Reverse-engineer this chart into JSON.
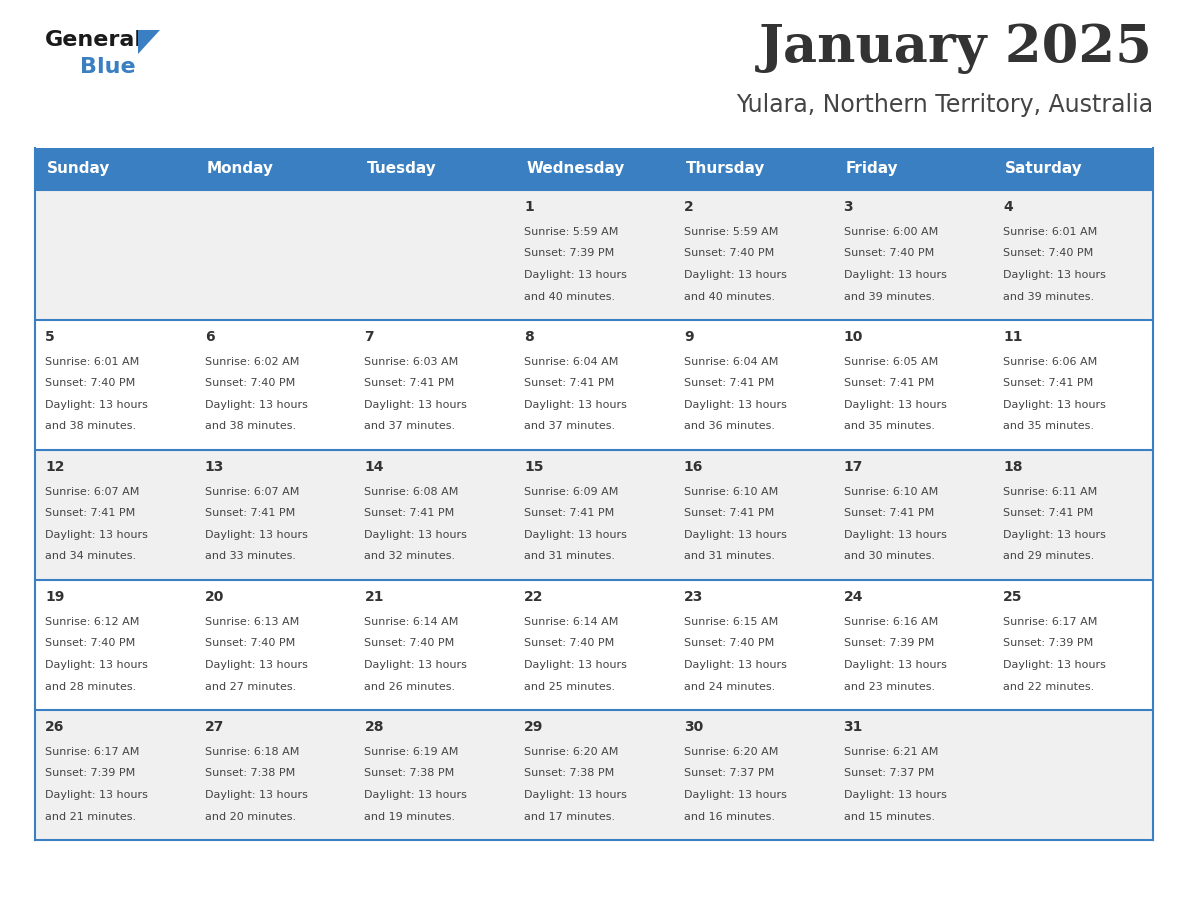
{
  "title": "January 2025",
  "subtitle": "Yulara, Northern Territory, Australia",
  "header_color": "#3a7fc1",
  "header_text_color": "#ffffff",
  "day_names": [
    "Sunday",
    "Monday",
    "Tuesday",
    "Wednesday",
    "Thursday",
    "Friday",
    "Saturday"
  ],
  "row_bg_even": "#f0f0f0",
  "row_bg_odd": "#ffffff",
  "border_color": "#3a7fc1",
  "text_color": "#444444",
  "day_number_color": "#333333",
  "logo_general_color": "#1a1a1a",
  "logo_blue_color": "#3a7fc1",
  "title_fontsize": 38,
  "subtitle_fontsize": 17,
  "header_fontsize": 11,
  "day_num_fontsize": 10,
  "cell_fontsize": 8,
  "days": [
    {
      "date": 1,
      "col": 3,
      "row": 0,
      "sunrise": "5:59 AM",
      "sunset": "7:39 PM",
      "daylight": "13 hours and 40 minutes"
    },
    {
      "date": 2,
      "col": 4,
      "row": 0,
      "sunrise": "5:59 AM",
      "sunset": "7:40 PM",
      "daylight": "13 hours and 40 minutes"
    },
    {
      "date": 3,
      "col": 5,
      "row": 0,
      "sunrise": "6:00 AM",
      "sunset": "7:40 PM",
      "daylight": "13 hours and 39 minutes"
    },
    {
      "date": 4,
      "col": 6,
      "row": 0,
      "sunrise": "6:01 AM",
      "sunset": "7:40 PM",
      "daylight": "13 hours and 39 minutes"
    },
    {
      "date": 5,
      "col": 0,
      "row": 1,
      "sunrise": "6:01 AM",
      "sunset": "7:40 PM",
      "daylight": "13 hours and 38 minutes"
    },
    {
      "date": 6,
      "col": 1,
      "row": 1,
      "sunrise": "6:02 AM",
      "sunset": "7:40 PM",
      "daylight": "13 hours and 38 minutes"
    },
    {
      "date": 7,
      "col": 2,
      "row": 1,
      "sunrise": "6:03 AM",
      "sunset": "7:41 PM",
      "daylight": "13 hours and 37 minutes"
    },
    {
      "date": 8,
      "col": 3,
      "row": 1,
      "sunrise": "6:04 AM",
      "sunset": "7:41 PM",
      "daylight": "13 hours and 37 minutes"
    },
    {
      "date": 9,
      "col": 4,
      "row": 1,
      "sunrise": "6:04 AM",
      "sunset": "7:41 PM",
      "daylight": "13 hours and 36 minutes"
    },
    {
      "date": 10,
      "col": 5,
      "row": 1,
      "sunrise": "6:05 AM",
      "sunset": "7:41 PM",
      "daylight": "13 hours and 35 minutes"
    },
    {
      "date": 11,
      "col": 6,
      "row": 1,
      "sunrise": "6:06 AM",
      "sunset": "7:41 PM",
      "daylight": "13 hours and 35 minutes"
    },
    {
      "date": 12,
      "col": 0,
      "row": 2,
      "sunrise": "6:07 AM",
      "sunset": "7:41 PM",
      "daylight": "13 hours and 34 minutes"
    },
    {
      "date": 13,
      "col": 1,
      "row": 2,
      "sunrise": "6:07 AM",
      "sunset": "7:41 PM",
      "daylight": "13 hours and 33 minutes"
    },
    {
      "date": 14,
      "col": 2,
      "row": 2,
      "sunrise": "6:08 AM",
      "sunset": "7:41 PM",
      "daylight": "13 hours and 32 minutes"
    },
    {
      "date": 15,
      "col": 3,
      "row": 2,
      "sunrise": "6:09 AM",
      "sunset": "7:41 PM",
      "daylight": "13 hours and 31 minutes"
    },
    {
      "date": 16,
      "col": 4,
      "row": 2,
      "sunrise": "6:10 AM",
      "sunset": "7:41 PM",
      "daylight": "13 hours and 31 minutes"
    },
    {
      "date": 17,
      "col": 5,
      "row": 2,
      "sunrise": "6:10 AM",
      "sunset": "7:41 PM",
      "daylight": "13 hours and 30 minutes"
    },
    {
      "date": 18,
      "col": 6,
      "row": 2,
      "sunrise": "6:11 AM",
      "sunset": "7:41 PM",
      "daylight": "13 hours and 29 minutes"
    },
    {
      "date": 19,
      "col": 0,
      "row": 3,
      "sunrise": "6:12 AM",
      "sunset": "7:40 PM",
      "daylight": "13 hours and 28 minutes"
    },
    {
      "date": 20,
      "col": 1,
      "row": 3,
      "sunrise": "6:13 AM",
      "sunset": "7:40 PM",
      "daylight": "13 hours and 27 minutes"
    },
    {
      "date": 21,
      "col": 2,
      "row": 3,
      "sunrise": "6:14 AM",
      "sunset": "7:40 PM",
      "daylight": "13 hours and 26 minutes"
    },
    {
      "date": 22,
      "col": 3,
      "row": 3,
      "sunrise": "6:14 AM",
      "sunset": "7:40 PM",
      "daylight": "13 hours and 25 minutes"
    },
    {
      "date": 23,
      "col": 4,
      "row": 3,
      "sunrise": "6:15 AM",
      "sunset": "7:40 PM",
      "daylight": "13 hours and 24 minutes"
    },
    {
      "date": 24,
      "col": 5,
      "row": 3,
      "sunrise": "6:16 AM",
      "sunset": "7:39 PM",
      "daylight": "13 hours and 23 minutes"
    },
    {
      "date": 25,
      "col": 6,
      "row": 3,
      "sunrise": "6:17 AM",
      "sunset": "7:39 PM",
      "daylight": "13 hours and 22 minutes"
    },
    {
      "date": 26,
      "col": 0,
      "row": 4,
      "sunrise": "6:17 AM",
      "sunset": "7:39 PM",
      "daylight": "13 hours and 21 minutes"
    },
    {
      "date": 27,
      "col": 1,
      "row": 4,
      "sunrise": "6:18 AM",
      "sunset": "7:38 PM",
      "daylight": "13 hours and 20 minutes"
    },
    {
      "date": 28,
      "col": 2,
      "row": 4,
      "sunrise": "6:19 AM",
      "sunset": "7:38 PM",
      "daylight": "13 hours and 19 minutes"
    },
    {
      "date": 29,
      "col": 3,
      "row": 4,
      "sunrise": "6:20 AM",
      "sunset": "7:38 PM",
      "daylight": "13 hours and 17 minutes"
    },
    {
      "date": 30,
      "col": 4,
      "row": 4,
      "sunrise": "6:20 AM",
      "sunset": "7:37 PM",
      "daylight": "13 hours and 16 minutes"
    },
    {
      "date": 31,
      "col": 5,
      "row": 4,
      "sunrise": "6:21 AM",
      "sunset": "7:37 PM",
      "daylight": "13 hours and 15 minutes"
    }
  ]
}
